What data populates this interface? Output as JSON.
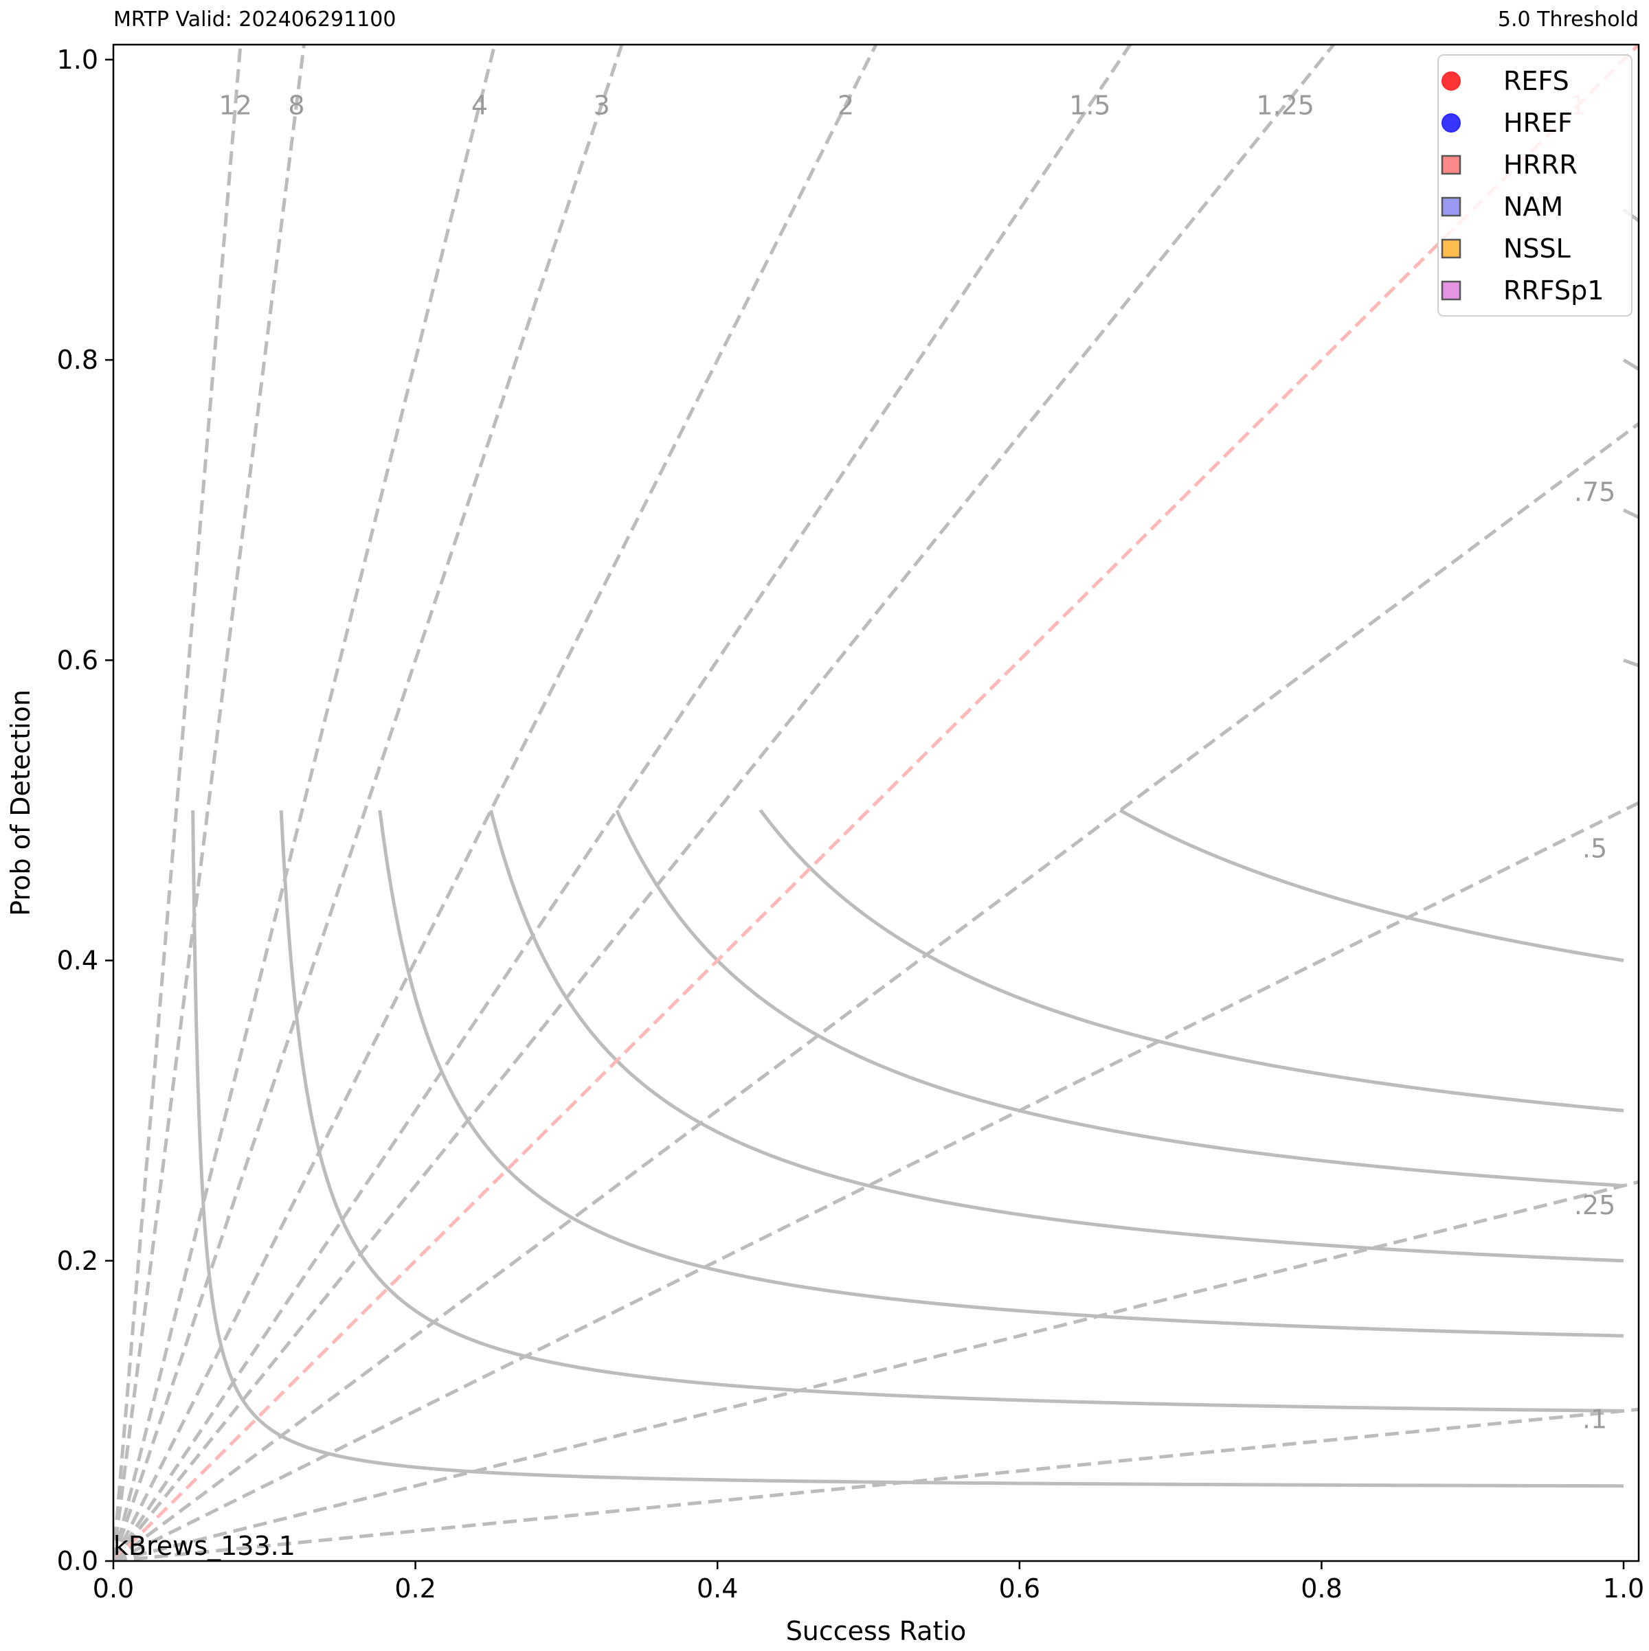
{
  "chart_data": {
    "type": "scatter",
    "title_left": "MRTP Valid: 202406291100",
    "title_right": "5.0 Threshold",
    "xlabel": "Success Ratio",
    "ylabel": "Prob of Detection",
    "xlim": [
      0,
      1.01
    ],
    "ylim": [
      0,
      1.01
    ],
    "x_ticks": [
      "0.0",
      "0.2",
      "0.4",
      "0.6",
      "0.8",
      "1.0"
    ],
    "y_ticks": [
      "0.0",
      "0.2",
      "0.4",
      "0.6",
      "0.8",
      "1.0"
    ],
    "grid": false,
    "bias_lines": [
      {
        "value": 12,
        "label": "12"
      },
      {
        "value": 8,
        "label": "8"
      },
      {
        "value": 4,
        "label": "4"
      },
      {
        "value": 3,
        "label": "3"
      },
      {
        "value": 2,
        "label": "2"
      },
      {
        "value": 1.5,
        "label": "1.5"
      },
      {
        "value": 1.25,
        "label": "1.25"
      },
      {
        "value": 1,
        "label": "1"
      },
      {
        "value": 0.75,
        "label": ".75"
      },
      {
        "value": 0.5,
        "label": ".5"
      },
      {
        "value": 0.25,
        "label": ".25"
      },
      {
        "value": 0.1,
        "label": ".1"
      }
    ],
    "csi_levels": [
      0.05,
      0.1,
      0.15,
      0.2,
      0.25,
      0.3,
      0.4,
      0.5,
      0.6,
      0.7,
      0.8,
      0.9
    ],
    "legend_position": "top-right",
    "series": [
      {
        "name": "REFS",
        "marker": "circle",
        "color": "#ff2a2a",
        "points": []
      },
      {
        "name": "HREF",
        "marker": "circle",
        "color": "#2a2aff",
        "points": []
      },
      {
        "name": "HRRR",
        "marker": "square",
        "color": "#ff7b7b",
        "points": []
      },
      {
        "name": "NAM",
        "marker": "square",
        "color": "#8f8ff2",
        "points": []
      },
      {
        "name": "NSSL",
        "marker": "square",
        "color": "#ffb63b",
        "points": []
      },
      {
        "name": "RRFSp1",
        "marker": "square",
        "color": "#e08ae0",
        "points": []
      }
    ],
    "annotation": "kBrews_133.1"
  }
}
